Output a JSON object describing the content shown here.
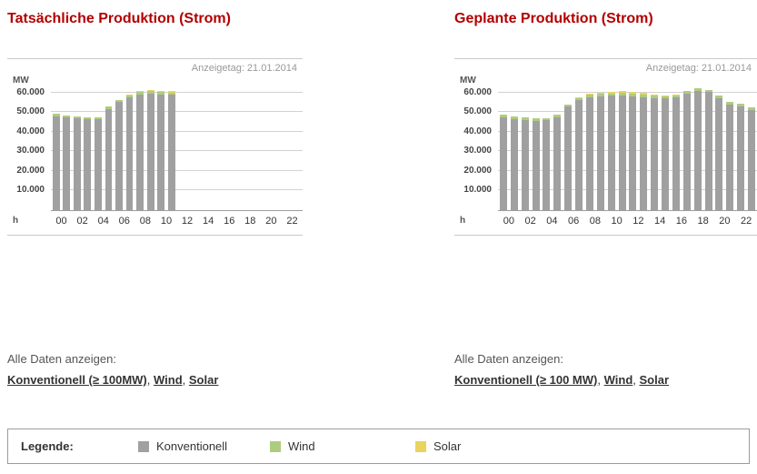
{
  "panels": {
    "left": {
      "title": "Tatsächliche Produktion (Strom)",
      "links_intro": "Alle Daten anzeigen:",
      "link_separator": ", ",
      "links": [
        {
          "id": "konventionell",
          "label": "Konventionell (≥ 100MW)"
        },
        {
          "id": "wind",
          "label": "Wind"
        },
        {
          "id": "solar",
          "label": "Solar"
        }
      ]
    },
    "right": {
      "title": "Geplante Produktion (Strom)",
      "links_intro": "Alle Daten anzeigen:",
      "link_separator": ", ",
      "links": [
        {
          "id": "konventionell",
          "label": "Konventionell (≥ 100 MW)"
        },
        {
          "id": "wind",
          "label": "Wind"
        },
        {
          "id": "solar",
          "label": "Solar"
        }
      ]
    }
  },
  "legend": {
    "title": "Legende:",
    "items": [
      {
        "id": "konventionell",
        "label": "Konventionell",
        "color": "#a0a0a0"
      },
      {
        "id": "wind",
        "label": "Wind",
        "color": "#aecc7e"
      },
      {
        "id": "solar",
        "label": "Solar",
        "color": "#e8d45f"
      }
    ]
  },
  "colors": {
    "title_red": "#b30000",
    "bar_konventionell": "#a0a0a0",
    "bar_wind": "#aecc7e",
    "bar_solar": "#e8d45f",
    "gridline": "#d2d2d2",
    "annotation_gray": "#999999"
  },
  "chart_data": [
    {
      "type": "bar",
      "stacked": true,
      "title": "Tatsächliche Produktion (Strom)",
      "annotation": "Anzeigetag: 21.01.2014",
      "ylabel": "MW",
      "xlabel": "h",
      "ylim": [
        0,
        65000
      ],
      "yticks": [
        10000,
        20000,
        30000,
        40000,
        50000,
        60000
      ],
      "ytick_labels": [
        "10.000",
        "20.000",
        "30.000",
        "40.000",
        "50.000",
        "60.000"
      ],
      "x_slots": 24,
      "xtick_labels": [
        "00",
        "02",
        "04",
        "06",
        "08",
        "10",
        "12",
        "14",
        "16",
        "18",
        "20",
        "22"
      ],
      "categories": [
        "00",
        "01",
        "02",
        "03",
        "04",
        "05",
        "06",
        "07",
        "08",
        "09",
        "10",
        "11"
      ],
      "series": [
        {
          "name": "Konventionell",
          "color": "#a0a0a0",
          "values": [
            47800,
            47200,
            46700,
            46300,
            46400,
            51700,
            55300,
            57800,
            59200,
            59500,
            59000,
            58900
          ]
        },
        {
          "name": "Wind",
          "color": "#aecc7e",
          "values": [
            1200,
            1200,
            1150,
            1100,
            1100,
            1100,
            1100,
            1150,
            1200,
            1200,
            1200,
            1200
          ]
        },
        {
          "name": "Solar",
          "color": "#e8d45f",
          "values": [
            0,
            0,
            0,
            0,
            0,
            0,
            0,
            100,
            300,
            500,
            700,
            700
          ]
        }
      ]
    },
    {
      "type": "bar",
      "stacked": true,
      "title": "Geplante Produktion (Strom)",
      "annotation": "Anzeigetag: 21.01.2014",
      "ylabel": "MW",
      "xlabel": "h",
      "ylim": [
        0,
        65000
      ],
      "yticks": [
        10000,
        20000,
        30000,
        40000,
        50000,
        60000
      ],
      "ytick_labels": [
        "10.000",
        "20.000",
        "30.000",
        "40.000",
        "50.000",
        "60.000"
      ],
      "x_slots": 24,
      "xtick_labels": [
        "00",
        "02",
        "04",
        "06",
        "08",
        "10",
        "12",
        "14",
        "16",
        "18",
        "20",
        "22"
      ],
      "categories": [
        "00",
        "01",
        "02",
        "03",
        "04",
        "05",
        "06",
        "07",
        "08",
        "09",
        "10",
        "11",
        "12",
        "13",
        "14",
        "15",
        "16",
        "17",
        "18",
        "19",
        "20",
        "21",
        "22",
        "23"
      ],
      "series": [
        {
          "name": "Konventionell",
          "color": "#a0a0a0",
          "values": [
            47300,
            46500,
            46000,
            45600,
            45800,
            47500,
            52800,
            56300,
            57800,
            58200,
            58300,
            58400,
            58200,
            57800,
            57200,
            56900,
            57500,
            59500,
            60700,
            60200,
            57000,
            54000,
            52800,
            51300
          ]
        },
        {
          "name": "Wind",
          "color": "#aecc7e",
          "values": [
            1300,
            1300,
            1250,
            1200,
            1200,
            1200,
            1200,
            1200,
            1250,
            1300,
            1300,
            1300,
            1300,
            1300,
            1300,
            1300,
            1300,
            1300,
            1300,
            1300,
            1300,
            1300,
            1300,
            1300
          ]
        },
        {
          "name": "Solar",
          "color": "#e8d45f",
          "values": [
            0,
            0,
            0,
            0,
            0,
            0,
            0,
            100,
            300,
            600,
            800,
            900,
            900,
            800,
            600,
            400,
            100,
            0,
            0,
            0,
            0,
            0,
            0,
            0
          ]
        }
      ]
    }
  ]
}
